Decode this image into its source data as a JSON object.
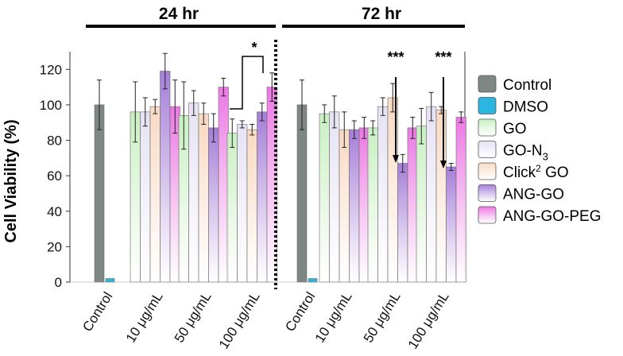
{
  "chart_data": {
    "type": "bar",
    "ylabel": "Cell Viability (%)",
    "ylim": [
      0,
      130
    ],
    "yticks": [
      0,
      20,
      40,
      60,
      80,
      100,
      120
    ],
    "panels": [
      {
        "title": "24 hr",
        "categories": [
          "Control",
          "10 μg/mL",
          "50 μg/mL",
          "100 μg/mL"
        ],
        "series": [
          {
            "name": "Control",
            "values": [
              100,
              null,
              null,
              null
            ],
            "errors": [
              14,
              null,
              null,
              null
            ]
          },
          {
            "name": "DMSO",
            "values": [
              2,
              null,
              null,
              null
            ],
            "errors": [
              0.5,
              null,
              null,
              null
            ]
          },
          {
            "name": "GO",
            "values": [
              null,
              96,
              94,
              84
            ],
            "errors": [
              null,
              17,
              19,
              8
            ]
          },
          {
            "name": "GO-N3",
            "values": [
              null,
              96,
              101,
              89
            ],
            "errors": [
              null,
              8,
              7,
              2
            ]
          },
          {
            "name": "Click2 GO",
            "values": [
              null,
              99,
              95,
              86
            ],
            "errors": [
              null,
              4,
              6,
              3
            ]
          },
          {
            "name": "ANG-GO",
            "values": [
              null,
              119,
              87,
              96
            ],
            "errors": [
              null,
              10,
              8,
              5
            ]
          },
          {
            "name": "ANG-GO-PEG",
            "values": [
              null,
              99,
              110,
              110
            ],
            "errors": [
              null,
              15,
              5,
              8
            ]
          }
        ],
        "annotation": "*"
      },
      {
        "title": "72 hr",
        "categories": [
          "Control",
          "10 μg/mL",
          "50 μg/mL",
          "100 μg/mL"
        ],
        "series": [
          {
            "name": "Control",
            "values": [
              100,
              null,
              null,
              null
            ],
            "errors": [
              14,
              null,
              null,
              null
            ]
          },
          {
            "name": "DMSO",
            "values": [
              2,
              null,
              null,
              null
            ],
            "errors": [
              0.5,
              null,
              null,
              null
            ]
          },
          {
            "name": "GO",
            "values": [
              null,
              95,
              87,
              88
            ],
            "errors": [
              null,
              5,
              4,
              10
            ]
          },
          {
            "name": "GO-N3",
            "values": [
              null,
              96,
              99,
              99
            ],
            "errors": [
              null,
              9,
              5,
              8
            ]
          },
          {
            "name": "Click2 GO",
            "values": [
              null,
              86,
              104,
              97
            ],
            "errors": [
              null,
              10,
              8,
              2
            ]
          },
          {
            "name": "ANG-GO",
            "values": [
              null,
              86,
              67,
              65
            ],
            "errors": [
              null,
              5,
              5,
              2
            ]
          },
          {
            "name": "ANG-GO-PEG",
            "values": [
              null,
              87,
              87,
              93
            ],
            "errors": [
              null,
              6,
              6,
              3
            ]
          }
        ],
        "annotations": [
          "***",
          "***"
        ]
      }
    ],
    "legend": [
      {
        "name": "Control",
        "label": "Control",
        "sup": "",
        "sub": "",
        "suffix": "",
        "color": "#7f8784"
      },
      {
        "name": "DMSO",
        "label": "DMSO",
        "sup": "",
        "sub": "",
        "suffix": "",
        "color": "#2bb6e2"
      },
      {
        "name": "GO",
        "label": "GO",
        "sup": "",
        "sub": "",
        "suffix": "",
        "color": "#c9f0c2"
      },
      {
        "name": "GO-N3",
        "label": "GO-N",
        "sup": "",
        "sub": "3",
        "suffix": "",
        "color": "#e6e2f4"
      },
      {
        "name": "Click2 GO",
        "label": "Click",
        "sup": "2",
        "sub": "",
        "suffix": " GO",
        "color": "#f9d9c2"
      },
      {
        "name": "ANG-GO",
        "label": "ANG-GO",
        "sup": "",
        "sub": "",
        "suffix": "",
        "color": "#a57ed8"
      },
      {
        "name": "ANG-GO-PEG",
        "label": "ANG-GO-PEG",
        "sup": "",
        "sub": "",
        "suffix": "",
        "color": "#ec78e4"
      }
    ]
  }
}
